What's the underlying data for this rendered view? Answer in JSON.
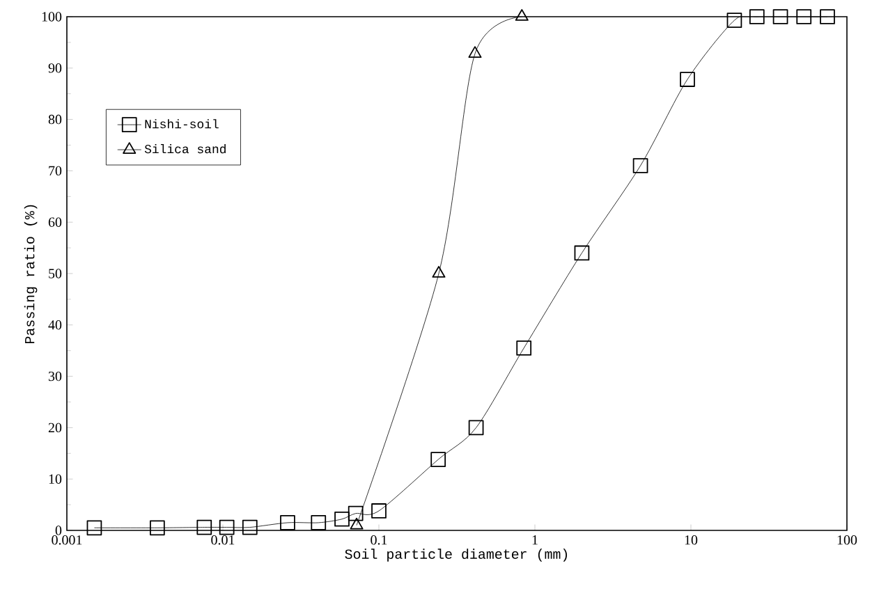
{
  "chart_data": {
    "type": "line",
    "xlabel": "Soil particle diameter (mm)",
    "ylabel": "Passing ratio (%)",
    "log": "x",
    "xlim": [
      0.001,
      100
    ],
    "ylim": [
      0,
      100
    ],
    "xticks": [
      0.001,
      0.01,
      0.1,
      1,
      10,
      100
    ],
    "yticks": [
      0,
      10,
      20,
      30,
      40,
      50,
      60,
      70,
      80,
      90,
      100
    ],
    "grid": false,
    "legend": "top left",
    "line_style": "solid",
    "series": [
      {
        "name": "Nishi-soil",
        "color": "#000000",
        "marker": "square",
        "x": [
          0.0015,
          0.0038,
          0.0076,
          0.0106,
          0.0149,
          0.026,
          0.041,
          0.058,
          0.071,
          0.1,
          0.24,
          0.42,
          0.85,
          2,
          4.75,
          9.5,
          19,
          26.5,
          37.5,
          53,
          75
        ],
        "values": [
          0.5,
          0.5,
          0.6,
          0.6,
          0.6,
          1.5,
          1.5,
          2.2,
          3.3,
          3.8,
          13.8,
          20,
          35.5,
          54,
          71,
          87.8,
          99.3,
          100,
          100,
          100,
          100
        ]
      },
      {
        "name": "Silica sand",
        "color": "#000000",
        "marker": "triangle",
        "x": [
          0.072,
          0.242,
          0.413,
          0.825
        ],
        "values": [
          1,
          50,
          92.8,
          100
        ]
      }
    ]
  }
}
